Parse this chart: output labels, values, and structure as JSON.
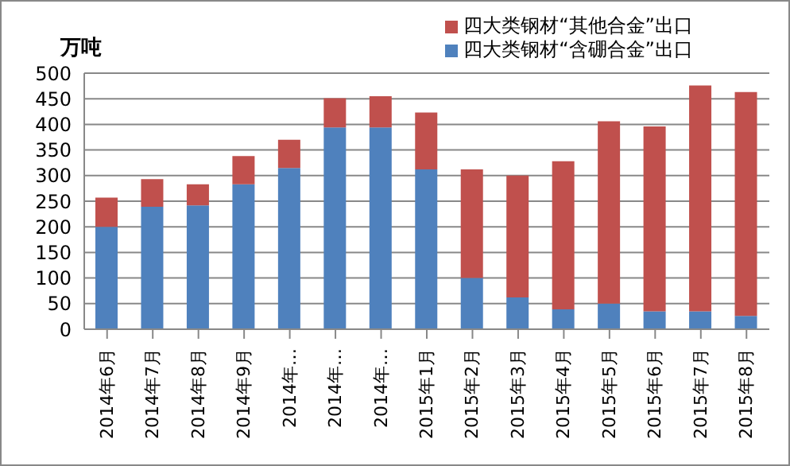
{
  "chart_data": {
    "type": "bar",
    "ylabel": "万吨",
    "stacked": true,
    "categories": [
      "2014年6月",
      "2014年7月",
      "2014年8月",
      "2014年9月",
      "2014年…",
      "2014年…",
      "2014年…",
      "2015年1月",
      "2015年2月",
      "2015年3月",
      "2015年4月",
      "2015年5月",
      "2015年6月",
      "2015年7月",
      "2015年8月"
    ],
    "series": [
      {
        "name": "四大类钢材“含硼合金”出口",
        "color": "#4f81bd",
        "values": [
          200,
          239,
          242,
          283,
          315,
          394,
          394,
          312,
          100,
          62,
          39,
          50,
          35,
          35,
          26
        ]
      },
      {
        "name": "四大类钢材“其他合金”出口",
        "color": "#c0504d",
        "values": [
          57,
          54,
          41,
          55,
          55,
          57,
          61,
          111,
          212,
          238,
          289,
          356,
          361,
          441,
          437
        ]
      }
    ],
    "ylim": [
      0,
      500
    ],
    "yticks": [
      0,
      50,
      100,
      150,
      200,
      250,
      300,
      350,
      400,
      450,
      500
    ],
    "grid": "y",
    "legend": "top right"
  }
}
